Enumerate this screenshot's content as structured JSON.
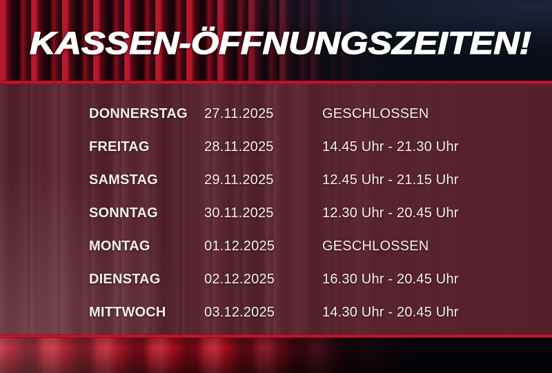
{
  "title": "KASSEN-ÖFFNUNGSZEITEN!",
  "schedule": {
    "rows": [
      {
        "day": "DONNERSTAG",
        "date": "27.11.2025",
        "hours": "GESCHLOSSEN"
      },
      {
        "day": "FREITAG",
        "date": "28.11.2025",
        "hours": "14.45 Uhr - 21.30 Uhr"
      },
      {
        "day": "SAMSTAG",
        "date": "29.11.2025",
        "hours": "12.45 Uhr - 21.15 Uhr"
      },
      {
        "day": "SONNTAG",
        "date": "30.11.2025",
        "hours": "12.30 Uhr - 20.45 Uhr"
      },
      {
        "day": "MONTAG",
        "date": "01.12.2025",
        "hours": "GESCHLOSSEN"
      },
      {
        "day": "DIENSTAG",
        "date": "02.12.2025",
        "hours": "16.30 Uhr - 20.45 Uhr"
      },
      {
        "day": "MITTWOCH",
        "date": "03.12.2025",
        "hours": "14.30 Uhr - 20.45 Uhr"
      }
    ]
  },
  "colors": {
    "accent_red_line": "#c61330",
    "curtain_bright_red": "#c11830",
    "panel_maroon": "#5b2430",
    "background_navy": "#0a0e18",
    "text_white": "#f2edf0"
  }
}
